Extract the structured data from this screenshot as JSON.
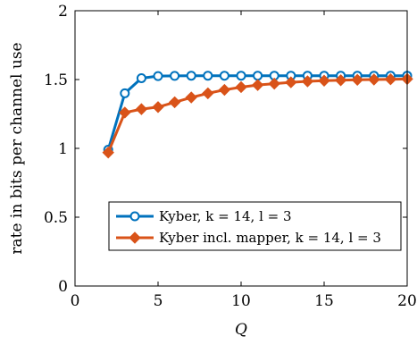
{
  "chart_data": {
    "type": "line",
    "xlabel": "Q",
    "ylabel": "rate in bits per channel use",
    "xlim": [
      0,
      20
    ],
    "ylim": [
      0,
      2
    ],
    "xticks": [
      0,
      5,
      10,
      15,
      20
    ],
    "yticks": [
      0,
      0.5,
      1,
      1.5,
      2
    ],
    "xtick_labels": [
      "0",
      "5",
      "10",
      "15",
      "20"
    ],
    "ytick_labels": [
      "0",
      "0.5",
      "1",
      "1.5",
      "2"
    ],
    "grid": false,
    "legend_position": "bottom-right",
    "series": [
      {
        "name": "Kyber, k = 14, l = 3",
        "color": "#0072BD",
        "marker": "circle",
        "x": [
          2,
          3,
          4,
          5,
          6,
          7,
          8,
          9,
          10,
          11,
          12,
          13,
          14,
          15,
          16,
          17,
          18,
          19,
          20
        ],
        "y": [
          0.99,
          1.4,
          1.51,
          1.525,
          1.527,
          1.528,
          1.528,
          1.528,
          1.528,
          1.528,
          1.528,
          1.528,
          1.528,
          1.528,
          1.528,
          1.528,
          1.528,
          1.528,
          1.528
        ]
      },
      {
        "name": "Kyber incl. mapper, k = 14, l = 3",
        "color": "#D95319",
        "marker": "diamond",
        "x": [
          2,
          3,
          4,
          5,
          6,
          7,
          8,
          9,
          10,
          11,
          12,
          13,
          14,
          15,
          16,
          17,
          18,
          19,
          20
        ],
        "y": [
          0.97,
          1.26,
          1.285,
          1.3,
          1.335,
          1.37,
          1.4,
          1.425,
          1.445,
          1.46,
          1.47,
          1.48,
          1.487,
          1.492,
          1.495,
          1.498,
          1.5,
          1.502,
          1.504
        ]
      }
    ]
  }
}
